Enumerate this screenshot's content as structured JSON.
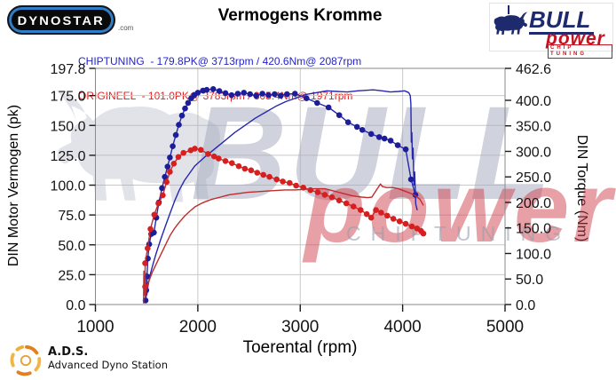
{
  "header": {
    "dynostar_text": "DYNOSTAR",
    "dynostar_suffix": ".com",
    "title": "Vermogens Kromme",
    "bull_logo": {
      "name": "BULL",
      "power": "power",
      "tagline": "CHIP TUNING"
    }
  },
  "legend": [
    {
      "text": "CHIPTUNING  - 179.8PK@ 3713rpm / 420.6Nm@ 2087rpm",
      "color": "#2323cc"
    },
    {
      "text": "ORIGINEEL  - 101.0PK@ 3783rpm / 305.4Nm@ 1971rpm",
      "color": "#dd2222"
    }
  ],
  "watermark": {
    "bull": "BULL",
    "power": "power",
    "chip": "CHIPTUNING",
    "bull_color": "#a3a9bc",
    "power_color": "#cf4350",
    "chip_color": "#979dac"
  },
  "footer": {
    "ads_abbr": "A.D.S.",
    "ads_name": "Advanced Dyno Station"
  },
  "chart_data": {
    "type": "line",
    "title": "Vermogens Kromme",
    "xlabel": "Toerental (rpm)",
    "xlim": [
      1000,
      5000
    ],
    "x_ticks": [
      1000,
      2000,
      3000,
      4000,
      5000
    ],
    "grid": true,
    "left_axis": {
      "label": "DIN Motor Vermogen (pk)",
      "ticks": [
        0,
        25,
        50,
        75,
        100,
        125,
        150,
        175,
        197.8
      ],
      "max": 197.8
    },
    "right_axis": {
      "label": "DIN Torque (Nm)",
      "ticks": [
        0,
        50,
        100,
        150,
        200,
        250,
        300,
        350,
        400,
        462.6
      ],
      "max": 462.6
    },
    "peaks": {
      "chiptuning": {
        "power_pk": 179.8,
        "power_rpm": 3713,
        "torque_nm": 420.6,
        "torque_rpm": 2087
      },
      "origineel": {
        "power_pk": 101.0,
        "power_rpm": 3783,
        "torque_nm": 305.4,
        "torque_rpm": 1971
      }
    },
    "series": [
      {
        "name": "chiptuning-torque",
        "axis": "right",
        "unit": "Nm",
        "color": "#2626b0",
        "marker_color": "#1d1d9a",
        "markers": true,
        "points": [
          [
            1490,
            8
          ],
          [
            1505,
            55
          ],
          [
            1497,
            28
          ],
          [
            1512,
            90
          ],
          [
            1525,
            118
          ],
          [
            1545,
            138
          ],
          [
            1571,
            141
          ],
          [
            1595,
            170
          ],
          [
            1620,
            200
          ],
          [
            1650,
            228
          ],
          [
            1678,
            250
          ],
          [
            1705,
            270
          ],
          [
            1727,
            288
          ],
          [
            1755,
            310
          ],
          [
            1785,
            332
          ],
          [
            1815,
            352
          ],
          [
            1845,
            370
          ],
          [
            1875,
            384
          ],
          [
            1905,
            395
          ],
          [
            1935,
            404
          ],
          [
            1965,
            410
          ],
          [
            2000,
            415
          ],
          [
            2050,
            419
          ],
          [
            2087,
            420.6
          ],
          [
            2150,
            422
          ],
          [
            2210,
            418
          ],
          [
            2270,
            414
          ],
          [
            2330,
            410
          ],
          [
            2390,
            413
          ],
          [
            2450,
            415
          ],
          [
            2510,
            412
          ],
          [
            2570,
            409
          ],
          [
            2630,
            413
          ],
          [
            2690,
            410
          ],
          [
            2750,
            412
          ],
          [
            2810,
            409
          ],
          [
            2870,
            412
          ],
          [
            2948,
            413
          ],
          [
            3061,
            404
          ],
          [
            3165,
            395
          ],
          [
            3277,
            386
          ],
          [
            3381,
            371
          ],
          [
            3468,
            357
          ],
          [
            3554,
            348
          ],
          [
            3606,
            342
          ],
          [
            3693,
            334
          ],
          [
            3771,
            328
          ],
          [
            3823,
            325
          ],
          [
            3883,
            321
          ],
          [
            3952,
            312
          ],
          [
            4030,
            304
          ],
          [
            4082,
            245
          ],
          [
            4125,
            215
          ]
        ]
      },
      {
        "name": "chiptuning-power",
        "axis": "left",
        "unit": "pk",
        "color": "#2626b0",
        "marker_color": "#1d1d9a",
        "markers": false,
        "points": [
          [
            1495,
            4
          ],
          [
            1500,
            26
          ],
          [
            1497,
            10
          ],
          [
            1505,
            20
          ],
          [
            1502,
            8
          ],
          [
            1512,
            15
          ],
          [
            1535,
            25
          ],
          [
            1560,
            33
          ],
          [
            1590,
            42
          ],
          [
            1635,
            54
          ],
          [
            1680,
            65
          ],
          [
            1727,
            76
          ],
          [
            1775,
            87
          ],
          [
            1820,
            96
          ],
          [
            1870,
            104
          ],
          [
            1920,
            110
          ],
          [
            1970,
            116
          ],
          [
            2060,
            123
          ],
          [
            2160,
            130
          ],
          [
            2260,
            137
          ],
          [
            2360,
            144
          ],
          [
            2460,
            150
          ],
          [
            2560,
            156
          ],
          [
            2660,
            161
          ],
          [
            2760,
            166
          ],
          [
            2860,
            170
          ],
          [
            2960,
            173
          ],
          [
            3060,
            176
          ],
          [
            3160,
            177.5
          ],
          [
            3260,
            179
          ],
          [
            3360,
            178.5
          ],
          [
            3460,
            178
          ],
          [
            3560,
            179
          ],
          [
            3713,
            179.8
          ],
          [
            3800,
            179
          ],
          [
            3880,
            178
          ],
          [
            3960,
            178.5
          ],
          [
            4020,
            179
          ],
          [
            4060,
            177.5
          ],
          [
            4074,
            175
          ],
          [
            4080,
            168
          ],
          [
            4085,
            136
          ],
          [
            4090,
            144
          ],
          [
            4095,
            122
          ],
          [
            4102,
            131
          ],
          [
            4110,
            100
          ],
          [
            4118,
            111
          ],
          [
            4128,
            84
          ],
          [
            4143,
            79
          ]
        ]
      },
      {
        "name": "origineel-torque",
        "axis": "right",
        "unit": "Nm",
        "color": "#c22b2b",
        "marker_color": "#d81f1f",
        "markers": true,
        "points": [
          [
            1485,
            35
          ],
          [
            1485,
            81
          ],
          [
            1510,
            110
          ],
          [
            1537,
            148
          ],
          [
            1575,
            176
          ],
          [
            1615,
            198
          ],
          [
            1658,
            214
          ],
          [
            1695,
            240
          ],
          [
            1727,
            260
          ],
          [
            1765,
            276
          ],
          [
            1810,
            289
          ],
          [
            1860,
            297
          ],
          [
            1930,
            302
          ],
          [
            1971,
            305.4
          ],
          [
            2030,
            303
          ],
          [
            2100,
            295
          ],
          [
            2160,
            290
          ],
          [
            2203,
            286
          ],
          [
            2270,
            281
          ],
          [
            2333,
            277
          ],
          [
            2400,
            271
          ],
          [
            2460,
            266
          ],
          [
            2520,
            263
          ],
          [
            2580,
            258
          ],
          [
            2640,
            254
          ],
          [
            2700,
            250
          ],
          [
            2770,
            245
          ],
          [
            2830,
            241
          ],
          [
            2896,
            238
          ],
          [
            2960,
            233
          ],
          [
            3030,
            229
          ],
          [
            3100,
            224
          ],
          [
            3170,
            220
          ],
          [
            3240,
            215
          ],
          [
            3310,
            210
          ],
          [
            3380,
            204
          ],
          [
            3450,
            198
          ],
          [
            3520,
            192
          ],
          [
            3590,
            185
          ],
          [
            3650,
            177
          ],
          [
            3693,
            170
          ],
          [
            3740,
            185
          ],
          [
            3790,
            180
          ],
          [
            3850,
            174
          ],
          [
            3910,
            168
          ],
          [
            3970,
            163
          ],
          [
            4030,
            158
          ],
          [
            4090,
            153
          ],
          [
            4140,
            149
          ],
          [
            4180,
            144
          ],
          [
            4203,
            139
          ]
        ]
      },
      {
        "name": "origineel-power",
        "axis": "left",
        "unit": "pk",
        "color": "#c22b2b",
        "marker_color": "#d81f1f",
        "markers": false,
        "points": [
          [
            1470,
            1
          ],
          [
            1473,
            28
          ],
          [
            1476,
            8
          ],
          [
            1481,
            22
          ],
          [
            1486,
            6
          ],
          [
            1495,
            12
          ],
          [
            1520,
            19
          ],
          [
            1555,
            27
          ],
          [
            1600,
            35
          ],
          [
            1645,
            43
          ],
          [
            1690,
            51
          ],
          [
            1730,
            58
          ],
          [
            1775,
            64
          ],
          [
            1820,
            69
          ],
          [
            1870,
            74
          ],
          [
            1920,
            78
          ],
          [
            1975,
            82
          ],
          [
            2040,
            85
          ],
          [
            2130,
            88
          ],
          [
            2220,
            90
          ],
          [
            2310,
            92
          ],
          [
            2400,
            93
          ],
          [
            2490,
            94
          ],
          [
            2580,
            94.5
          ],
          [
            2670,
            95
          ],
          [
            2760,
            95.5
          ],
          [
            2850,
            96
          ],
          [
            2950,
            96
          ],
          [
            3050,
            96.5
          ],
          [
            3150,
            97
          ],
          [
            3240,
            97
          ],
          [
            3330,
            95
          ],
          [
            3420,
            93
          ],
          [
            3510,
            91
          ],
          [
            3600,
            90
          ],
          [
            3660,
            89.5
          ],
          [
            3700,
            90
          ],
          [
            3745,
            96
          ],
          [
            3783,
            101
          ],
          [
            3800,
            99
          ],
          [
            3840,
            98
          ],
          [
            3900,
            98
          ],
          [
            3960,
            97
          ],
          [
            4020,
            95
          ],
          [
            4080,
            93
          ],
          [
            4130,
            91
          ],
          [
            4170,
            88
          ],
          [
            4190,
            85
          ],
          [
            4203,
            83
          ]
        ]
      }
    ]
  }
}
